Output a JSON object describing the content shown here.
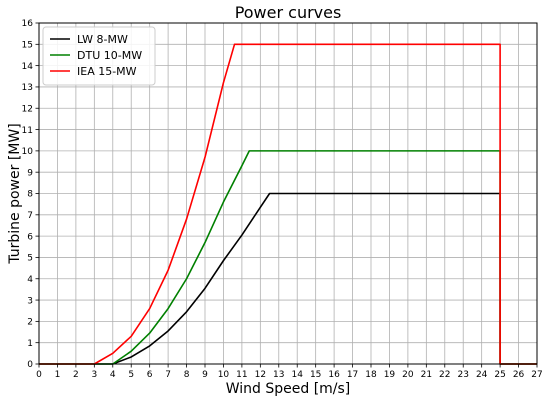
{
  "chart_data": {
    "type": "line",
    "title": "Power curves",
    "xlabel": "Wind Speed [m/s]",
    "ylabel": "Turbine power [MW]",
    "xlim": [
      0,
      27
    ],
    "ylim": [
      0,
      16
    ],
    "xticks": [
      0,
      1,
      2,
      3,
      4,
      5,
      6,
      7,
      8,
      9,
      10,
      11,
      12,
      13,
      14,
      15,
      16,
      17,
      18,
      19,
      20,
      21,
      22,
      23,
      24,
      25,
      26,
      27
    ],
    "yticks": [
      0,
      1,
      2,
      3,
      4,
      5,
      6,
      7,
      8,
      9,
      10,
      11,
      12,
      13,
      14,
      15,
      16
    ],
    "grid": true,
    "legend_position": "top-left",
    "series": [
      {
        "name": "LW 8-MW",
        "color": "#000000",
        "x": [
          0,
          4,
          5,
          6,
          7,
          8,
          9,
          10,
          11,
          12,
          12.5,
          25,
          25,
          27
        ],
        "y": [
          0,
          0,
          0.33,
          0.85,
          1.55,
          2.45,
          3.55,
          4.85,
          6.05,
          7.35,
          8,
          8,
          0,
          0
        ]
      },
      {
        "name": "DTU 10-MW",
        "color": "#008000",
        "x": [
          0,
          4,
          5,
          6,
          7,
          8,
          9,
          10,
          11,
          11.4,
          25,
          25,
          27
        ],
        "y": [
          0,
          0,
          0.6,
          1.45,
          2.6,
          4.0,
          5.7,
          7.6,
          9.3,
          10,
          10,
          0,
          0
        ]
      },
      {
        "name": "IEA 15-MW",
        "color": "#ff0000",
        "x": [
          0,
          3,
          4,
          5,
          6,
          7,
          8,
          9,
          10,
          10.6,
          25,
          25,
          27
        ],
        "y": [
          0,
          0,
          0.5,
          1.3,
          2.6,
          4.4,
          6.8,
          9.7,
          13.2,
          15,
          15,
          0,
          0
        ]
      }
    ]
  }
}
